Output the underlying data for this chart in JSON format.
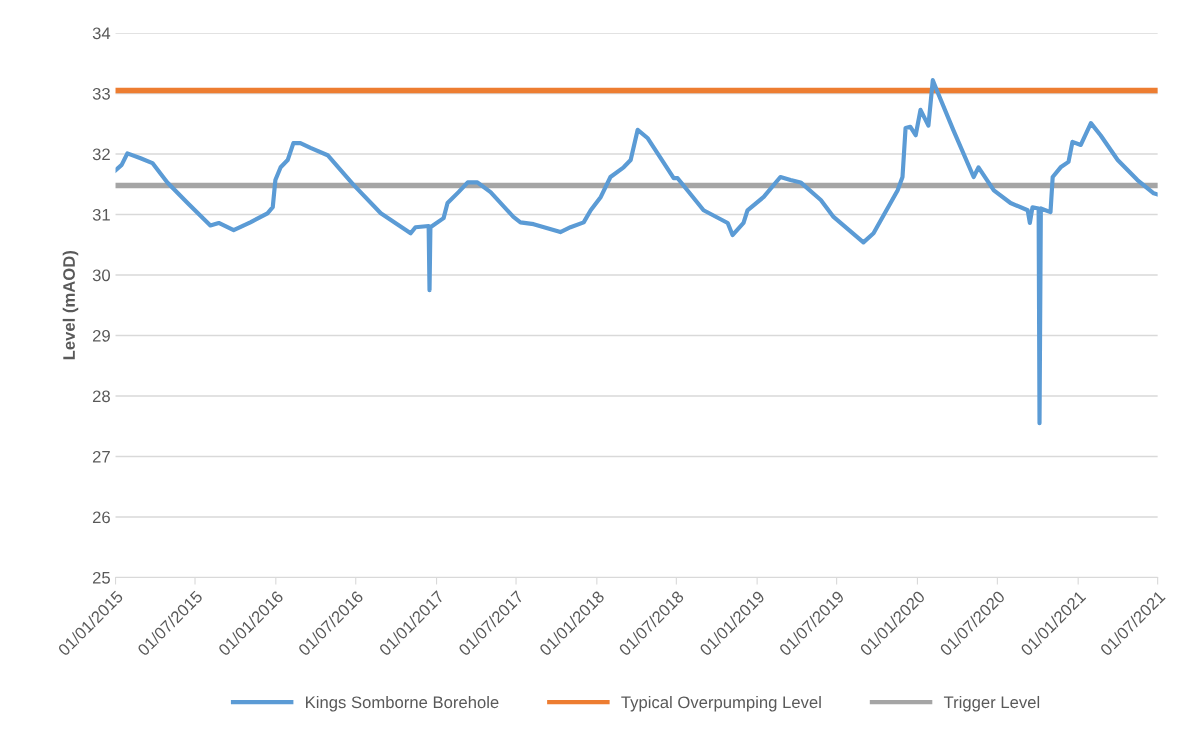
{
  "chart_data": {
    "type": "line",
    "ylabel": "Level (mAOD)",
    "x": [
      "2015-01-01",
      "2015-01-15",
      "2015-01-28",
      "2015-02-27",
      "2015-03-26",
      "2015-04-29",
      "2015-06-14",
      "2015-08-05",
      "2015-08-24",
      "2015-09-27",
      "2015-11-04",
      "2015-12-13",
      "2015-12-25",
      "2015-12-31",
      "2016-01-12",
      "2016-01-28",
      "2016-02-10",
      "2016-02-26",
      "2016-03-20",
      "2016-04-28",
      "2016-06-26",
      "2016-08-27",
      "2016-11-03",
      "2016-11-14",
      "2016-12-14",
      "2016-12-16",
      "2016-12-18",
      "2017-01-17",
      "2017-01-26",
      "2017-02-20",
      "2017-03-13",
      "2017-04-04",
      "2017-05-04",
      "2017-06-25",
      "2017-07-11",
      "2017-08-10",
      "2017-10-10",
      "2017-11-02",
      "2017-12-02",
      "2017-12-18",
      "2018-01-10",
      "2018-02-01",
      "2018-03-03",
      "2018-03-19",
      "2018-04-04",
      "2018-04-27",
      "2018-06-25",
      "2018-07-04",
      "2018-09-01",
      "2018-10-26",
      "2018-11-06",
      "2018-12-01",
      "2018-12-10",
      "2019-01-16",
      "2019-02-23",
      "2019-03-18",
      "2019-04-10",
      "2019-05-26",
      "2019-06-24",
      "2019-08-31",
      "2019-09-23",
      "2019-11-17",
      "2019-11-28",
      "2019-12-05",
      "2019-12-16",
      "2019-12-28",
      "2020-01-08",
      "2020-01-26",
      "2020-02-05",
      "2020-02-16",
      "2020-03-23",
      "2020-05-08",
      "2020-05-19",
      "2020-06-23",
      "2020-07-31",
      "2020-09-08",
      "2020-09-13",
      "2020-09-19",
      "2020-10-03",
      "2020-10-05",
      "2020-10-08",
      "2020-10-30",
      "2020-11-04",
      "2020-11-22",
      "2020-12-10",
      "2020-12-19",
      "2021-01-07",
      "2021-01-30",
      "2021-02-21",
      "2021-04-01",
      "2021-05-16",
      "2021-06-22",
      "2021-07-01"
    ],
    "series": [
      {
        "name": "Kings Somborne Borehole",
        "color": "#5b9bd5",
        "values": [
          31.73,
          31.82,
          32.01,
          31.93,
          31.85,
          31.53,
          31.19,
          30.82,
          30.86,
          30.74,
          30.87,
          31.02,
          31.12,
          31.57,
          31.78,
          31.9,
          32.18,
          32.18,
          32.1,
          31.98,
          31.49,
          31.02,
          30.69,
          30.79,
          30.81,
          29.75,
          30.79,
          30.94,
          31.19,
          31.37,
          31.53,
          31.53,
          31.37,
          30.96,
          30.87,
          30.84,
          30.71,
          30.79,
          30.87,
          31.07,
          31.29,
          31.62,
          31.78,
          31.9,
          32.4,
          32.26,
          31.6,
          31.6,
          31.07,
          30.86,
          30.66,
          30.86,
          31.07,
          31.29,
          31.62,
          31.57,
          31.53,
          31.24,
          30.96,
          30.54,
          30.69,
          31.4,
          31.62,
          32.43,
          32.45,
          32.31,
          32.73,
          32.47,
          33.22,
          33.02,
          32.39,
          31.62,
          31.78,
          31.4,
          31.19,
          31.07,
          30.86,
          31.12,
          31.1,
          27.55,
          31.1,
          31.04,
          31.62,
          31.78,
          31.87,
          32.2,
          32.15,
          32.51,
          32.31,
          31.9,
          31.57,
          31.35,
          31.33
        ]
      }
    ],
    "ref_lines": [
      {
        "axis": "y",
        "value": 33.05,
        "label": "Typical Overpumping Level",
        "color": "#ed7d31"
      },
      {
        "axis": "y",
        "value": 31.48,
        "label": "Trigger Level",
        "color": "#a5a5a5"
      }
    ],
    "xlim": [
      "2015-01-01",
      "2021-07-01"
    ],
    "xticks": [
      {
        "value": "2015-01-01",
        "label": "01/01/2015"
      },
      {
        "value": "2015-07-01",
        "label": "01/07/2015"
      },
      {
        "value": "2016-01-01",
        "label": "01/01/2016"
      },
      {
        "value": "2016-07-01",
        "label": "01/07/2016"
      },
      {
        "value": "2017-01-01",
        "label": "01/01/2017"
      },
      {
        "value": "2017-07-01",
        "label": "01/07/2017"
      },
      {
        "value": "2018-01-01",
        "label": "01/01/2018"
      },
      {
        "value": "2018-07-01",
        "label": "01/07/2018"
      },
      {
        "value": "2019-01-01",
        "label": "01/01/2019"
      },
      {
        "value": "2019-07-01",
        "label": "01/07/2019"
      },
      {
        "value": "2020-01-01",
        "label": "01/01/2020"
      },
      {
        "value": "2020-07-01",
        "label": "01/07/2020"
      },
      {
        "value": "2021-01-01",
        "label": "01/01/2021"
      },
      {
        "value": "2021-07-01",
        "label": "01/07/2021"
      }
    ],
    "ylim": [
      25,
      34
    ],
    "yticks": [
      25,
      26,
      27,
      28,
      29,
      30,
      31,
      32,
      33,
      34
    ],
    "grid": "y",
    "legend": "bottom",
    "marker": "none",
    "line_style": "solid"
  }
}
